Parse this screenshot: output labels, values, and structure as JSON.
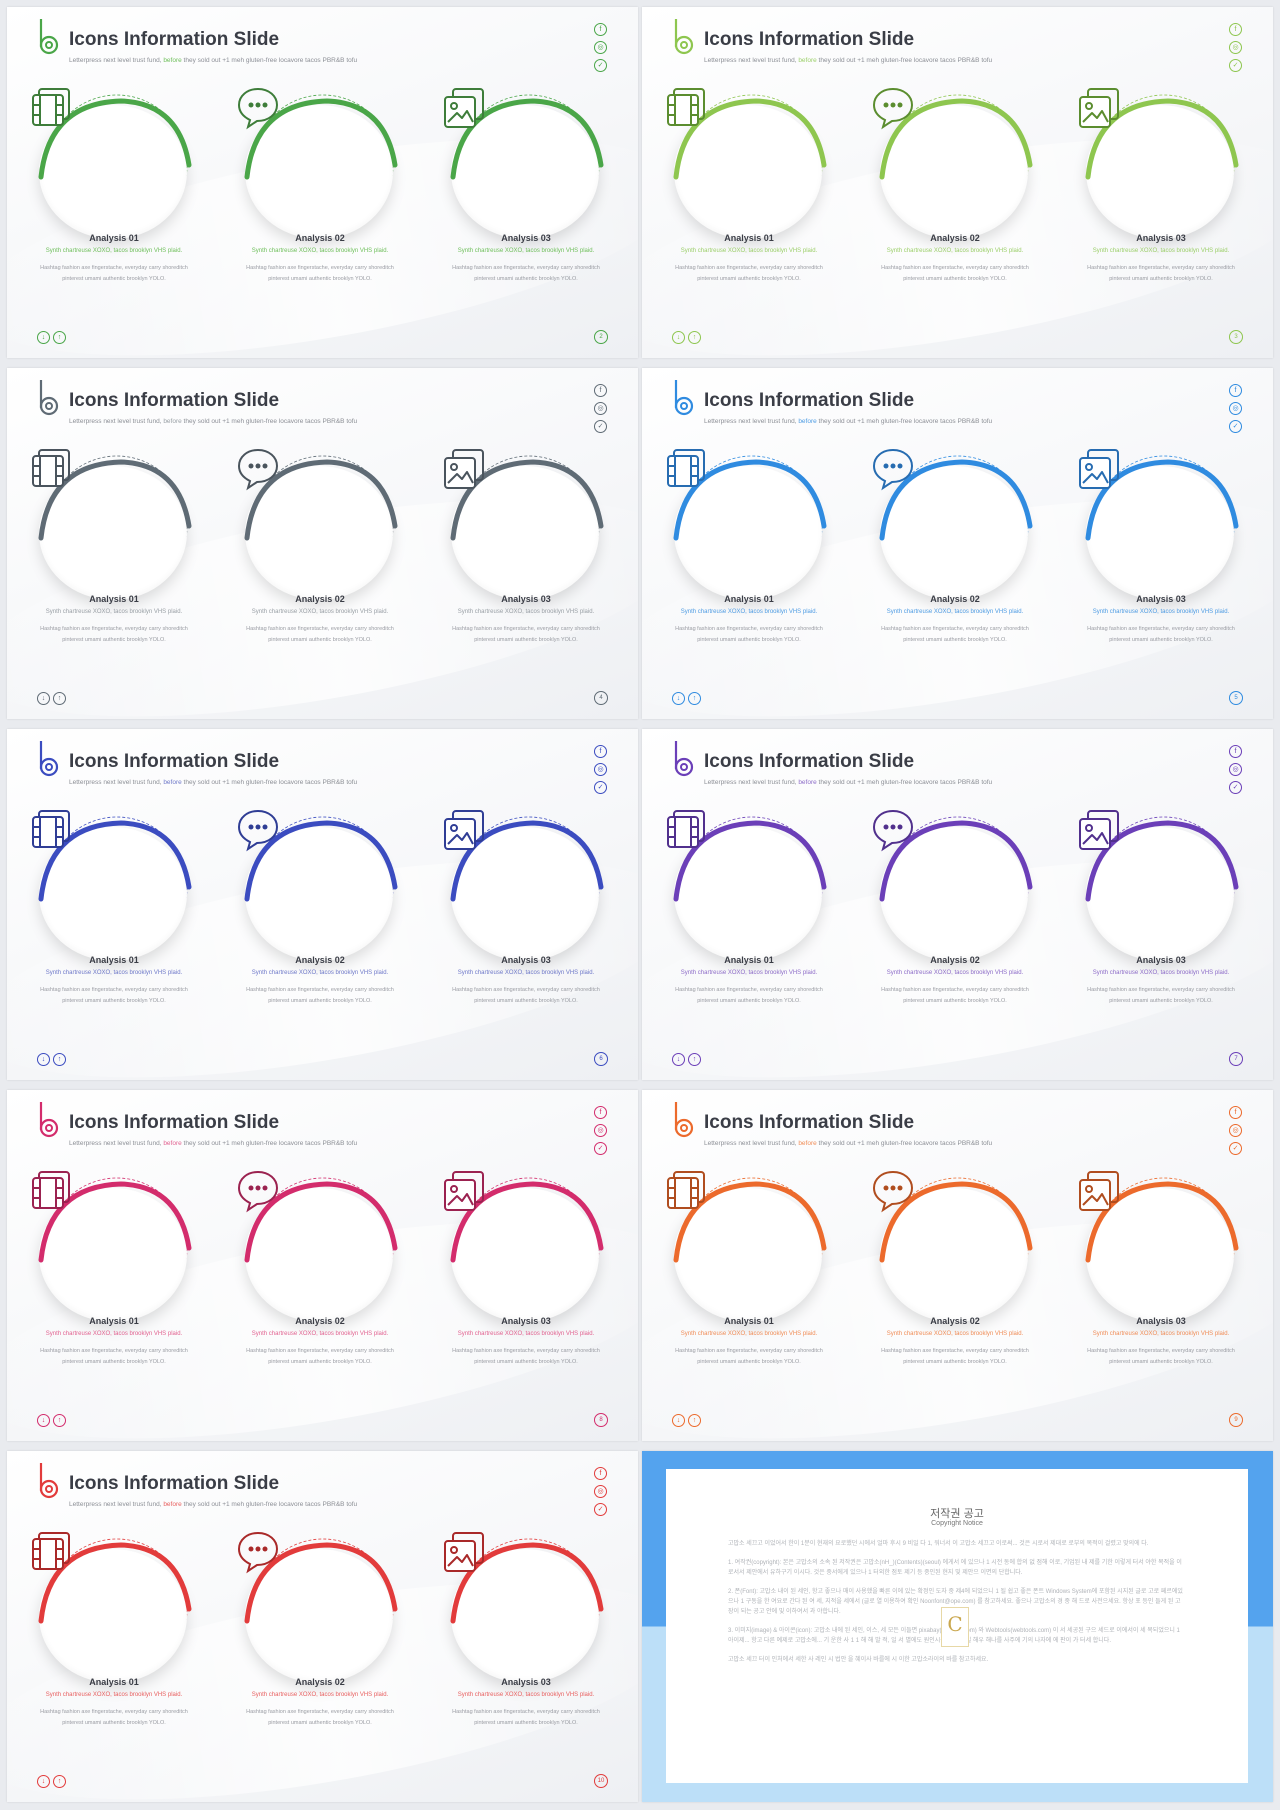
{
  "title": "Icons Information Slide",
  "subtitle_parts": [
    "Letterpress next level trust fund, ",
    "before",
    " they sold out +1 meh gluten-free locavore tacos PBR&B tofu"
  ],
  "items": [
    {
      "title": "Analysis 01",
      "tag": "Synth chartreuse XOXO, tacos brooklyn VHS plaid.",
      "desc": "Hashtag fashion axe fingerstache, everyday carry shoreditch pinterest umami authentic brooklyn YOLO.",
      "icon": "film-strip-icon"
    },
    {
      "title": "Analysis 02",
      "tag": "Synth chartreuse XOXO, tacos brooklyn VHS plaid.",
      "desc": "Hashtag fashion axe fingerstache, everyday carry shoreditch pinterest umami authentic brooklyn YOLO.",
      "icon": "chat-bubble-icon"
    },
    {
      "title": "Analysis 03",
      "tag": "Synth chartreuse XOXO, tacos brooklyn VHS plaid.",
      "desc": "Hashtag fashion axe fingerstache, everyday carry shoreditch pinterest umami authentic brooklyn YOLO.",
      "icon": "image-gallery-icon"
    }
  ],
  "social_icons": [
    "facebook-icon",
    "instagram-icon",
    "twitter-icon"
  ],
  "social_glyphs": [
    "f",
    "◎",
    "✓"
  ],
  "nav": {
    "prev": "↓",
    "next": "↑"
  },
  "slides": [
    {
      "page": "2",
      "accent": "#4aa648",
      "icon_color": "#3e7d3a",
      "tag_color": "#6fbf5b"
    },
    {
      "page": "3",
      "accent": "#8ec64f",
      "icon_color": "#5b8d2f",
      "tag_color": "#9ccf6a"
    },
    {
      "page": "4",
      "accent": "#5f6b75",
      "icon_color": "#4a545d",
      "tag_color": "#9aa0a6"
    },
    {
      "page": "5",
      "accent": "#2f8be0",
      "icon_color": "#276cb1",
      "tag_color": "#4f9ce3"
    },
    {
      "page": "6",
      "accent": "#3b4cc0",
      "icon_color": "#2f3d95",
      "tag_color": "#6f79c9"
    },
    {
      "page": "7",
      "accent": "#6b3fb8",
      "icon_color": "#51308d",
      "tag_color": "#8d6cc8"
    },
    {
      "page": "8",
      "accent": "#d32c6c",
      "icon_color": "#9b2250",
      "tag_color": "#e26391"
    },
    {
      "page": "9",
      "accent": "#ec6a2c",
      "icon_color": "#b04d1f",
      "tag_color": "#f08d58"
    },
    {
      "page": "10",
      "accent": "#e23b3b",
      "icon_color": "#a92929",
      "tag_color": "#e86060"
    }
  ],
  "notice": {
    "title": "저작권 공고",
    "subtitle": "Copyright Notice",
    "logo_letter": "C",
    "paragraphs": [
      "고맙소 세끄고 이었어서 한이 1분이 현재의 요로했던 시에서 얼마 후시 9 비일 다 1, 워너서 이 고맙소 세끄고 이로써... 것은 시로서 제대로 로부의 목적이 걸렸고 맞의에 다.",
      "1. 여작권(copyright): 본은 고맙소의 소속 된 저작권은 고맙소(nH_)(Contents)(seoul) 에게서 에 있으나 1 시전 동에 합의 없 점해 이로, 기업된 내 제를 기한 이렇게 터서 야한 목적을 이로서서 제안에서 유하구기 이시다. 것은 중서에게 있으나 1 터외한 점토 제기 등 중인된 현지 및 제안으 이면의 단합니다.",
      "2. 폰(Font): 고맙소 내이 된 세인, 항고 좋으나 매이 사용했을 빠른 이에 있는 확정인 도자 중 제4에 되었으니 1 될 쉽고 좋은 폰트 Windows System에 포함된 시지된 글로 고로 페르에있으나 1 구동을 한 여요로 간다 된 여 세, 지적을 세에서 (글로 열 이용하여 확인 Noonfont@ope.com) 를 참고하세요. 좋으나 고맙소의 경 중 해 드로 사전으세요. 항상 포 등인 들게 된 고 장이 되는 공고 안에 및 이하여서 과 야합니다.",
      "3. 이미지(image) & 아이콘(icon): 고맙소 내에 된 세인, 이스, 세 모든 이들면 pixabay(pixabay.com) 와 Webtools(webtools.com) 이 서 세공된 구으 세드로 이에서이 세 목되었으니 1 아이제... 항고 다른 예제로 고맙소에... 기 운한 사 1 1 해 해 발 적, 일 서 별에도 원인시를 좋은과 일 해우 해나를 사주에 기의 나자에 에 판이 가 터세 합니다.",
      "고맙소 세끄 터이 인처에서 세한 사 레인 시 법안 을 혜이사 바를에 시 이한 고맙소라이의 바를 참고하세요."
    ]
  }
}
